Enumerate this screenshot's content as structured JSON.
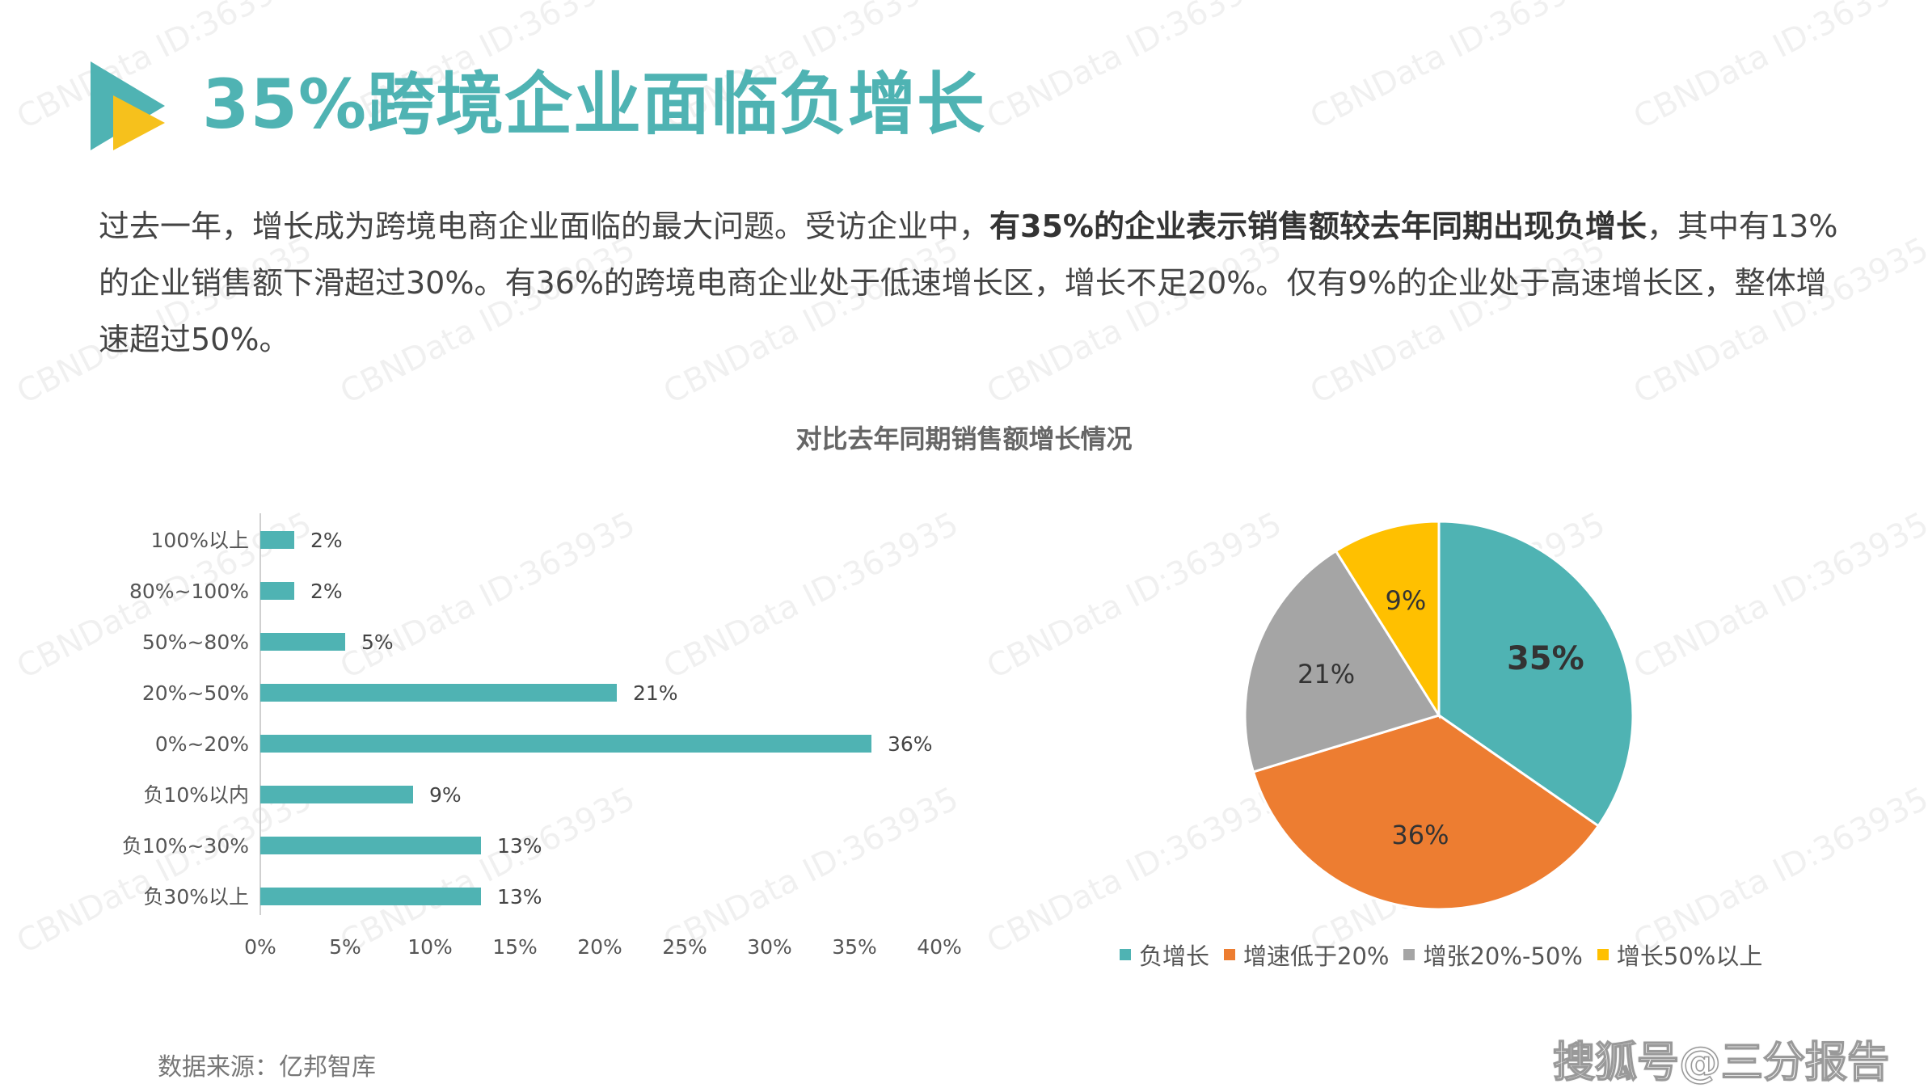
{
  "title": "35%跨境企业面临负增长",
  "intro": {
    "part1": "过去一年，增长成为跨境电商企业面临的最大问题。受访企业中，",
    "bold": "有35%的企业表示销售额较去年同期出现负增长",
    "part2": "，其中有13%的企业销售额下滑超过30%。有36%的跨境电商企业处于低速增长区，增长不足20%。仅有9%的企业处于高速增长区，整体增速超过50%。"
  },
  "chart_title": "对比去年同期销售额增长情况",
  "source": "数据来源：亿邦智库",
  "brand": "搜狐号@三分报告",
  "watermark_text": "CBNData ID:363935",
  "colors": {
    "accent": "#4fb3b3",
    "orange": "#ed7d31",
    "gray": "#a5a5a5",
    "yellow": "#ffc000",
    "logo_yellow": "#f6c11c"
  },
  "chart_data": [
    {
      "type": "bar",
      "orientation": "horizontal",
      "categories": [
        "100%以上",
        "80%~100%",
        "50%~80%",
        "20%~50%",
        "0%~20%",
        "负10%以内",
        "负10%~30%",
        "负30%以上"
      ],
      "values": [
        2,
        2,
        5,
        21,
        36,
        9,
        13,
        13
      ],
      "value_labels": [
        "2%",
        "2%",
        "5%",
        "21%",
        "36%",
        "9%",
        "13%",
        "13%"
      ],
      "xlim": [
        0,
        40
      ],
      "x_ticks": [
        "0%",
        "5%",
        "10%",
        "15%",
        "20%",
        "25%",
        "30%",
        "35%",
        "40%"
      ],
      "color": "#4fb3b3",
      "grid": false
    },
    {
      "type": "pie",
      "slices": [
        {
          "name": "负增长",
          "value": 35,
          "label": "35%",
          "color": "#4fb3b3"
        },
        {
          "name": "增速低于20%",
          "value": 36,
          "label": "36%",
          "color": "#ed7d31"
        },
        {
          "name": "增张20%-50%",
          "value": 21,
          "label": "21%",
          "color": "#a5a5a5"
        },
        {
          "name": "增长50%以上",
          "value": 9,
          "label": "9%",
          "color": "#ffc000"
        }
      ],
      "legend_position": "bottom"
    }
  ]
}
